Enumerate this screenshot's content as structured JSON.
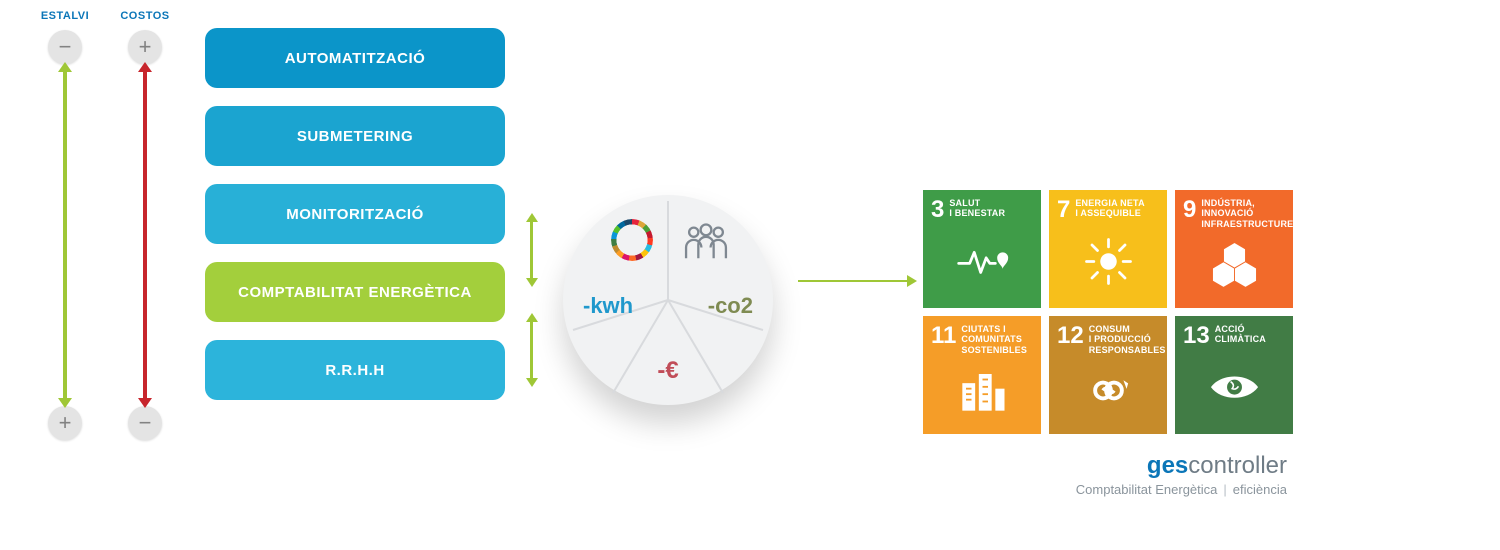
{
  "arrows": {
    "left": {
      "header": "ESTALVI",
      "top_sign": "−",
      "bottom_sign": "+",
      "color": "#9fc736"
    },
    "right": {
      "header": "COSTOS",
      "top_sign": "+",
      "bottom_sign": "−",
      "color": "#c7252c"
    },
    "header_color": "#0b76b8",
    "button_bg": "#e4e4e4"
  },
  "pills": [
    {
      "label": "AUTOMATITZACIÓ",
      "bg": "#0b95c9"
    },
    {
      "label": "SUBMETERING",
      "bg": "#1ba4d0"
    },
    {
      "label": "MONITORITZACIÓ",
      "bg": "#28b0d7"
    },
    {
      "label": "COMPTABILITAT ENERGÈTICA",
      "bg": "#a3cf3c"
    },
    {
      "label": "R.R.H.H",
      "bg": "#2cb4db"
    }
  ],
  "mini_arrow_color": "#9fc736",
  "pie": {
    "bg": "#f1f2f3",
    "divider_color": "#d8dadd",
    "labels": {
      "kwh": {
        "text": "-kwh",
        "color": "#1f98cc"
      },
      "co2": {
        "text": "-co2",
        "color": "#7f8b52"
      },
      "eur": {
        "text": "-€",
        "color": "#c14d58"
      }
    },
    "icons": {
      "sdg_wheel": "sdg-wheel-icon",
      "people": "people-icon"
    }
  },
  "h_arrow_color": "#9fc736",
  "sdg": {
    "tiles": [
      {
        "num": "3",
        "title": "SALUT\nI BENESTAR",
        "bg": "#3f9c48",
        "icon": "heartbeat"
      },
      {
        "num": "7",
        "title": "ENERGIA NETA\nI ASSEQUIBLE",
        "bg": "#f7bf1b",
        "icon": "sun"
      },
      {
        "num": "9",
        "title": "INDÚSTRIA,\nINNOVACIÓ\nINFRAESTRUCTURES",
        "bg": "#f26a2a",
        "icon": "cubes"
      },
      {
        "num": "11",
        "title": "CIUTATS I\nCOMUNITATS\nSOSTENIBLES",
        "bg": "#f59d28",
        "icon": "buildings"
      },
      {
        "num": "12",
        "title": "CONSUM\nI PRODUCCIÓ\nRESPONSABLES",
        "bg": "#c68b2a",
        "icon": "infinity"
      },
      {
        "num": "13",
        "title": "ACCIÓ\nCLIMÀTICA",
        "bg": "#417c45",
        "icon": "eye"
      }
    ]
  },
  "brand": {
    "bold": "ges",
    "rest": "controller",
    "sub_left": "Comptabilitat Energètica",
    "sub_right": "eficiència",
    "bold_color": "#0b76b8",
    "rest_color": "#6f7c86",
    "sub_color": "#8a949c"
  }
}
